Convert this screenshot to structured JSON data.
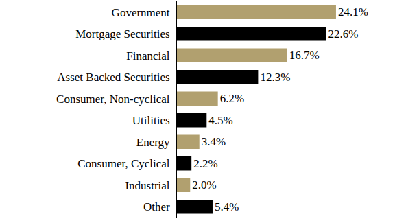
{
  "chart_data": {
    "type": "bar",
    "orientation": "horizontal",
    "categories": [
      "Government",
      "Mortgage Securities",
      "Financial",
      "Asset Backed Securities",
      "Consumer, Non-cyclical",
      "Utilities",
      "Energy",
      "Consumer, Cyclical",
      "Industrial",
      "Other"
    ],
    "values": [
      24.1,
      22.6,
      16.7,
      12.3,
      6.2,
      4.5,
      3.4,
      2.2,
      2.0,
      5.4
    ],
    "value_labels": [
      "24.1%",
      "22.6%",
      "16.7%",
      "12.3%",
      "6.2%",
      "4.5%",
      "3.4%",
      "2.2%",
      "2.0%",
      "5.4%"
    ],
    "colors": [
      "#b1a06f",
      "#000000",
      "#b1a06f",
      "#000000",
      "#b1a06f",
      "#000000",
      "#b1a06f",
      "#000000",
      "#b1a06f",
      "#000000"
    ],
    "xlim": [
      0,
      32
    ],
    "xticks": [],
    "grid": false,
    "data_labels": true,
    "tick_labels": "y"
  }
}
